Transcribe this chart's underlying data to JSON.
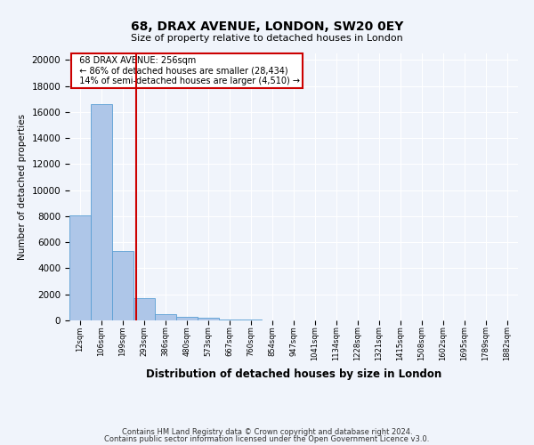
{
  "title1": "68, DRAX AVENUE, LONDON, SW20 0EY",
  "title2": "Size of property relative to detached houses in London",
  "xlabel": "Distribution of detached houses by size in London",
  "ylabel": "Number of detached properties",
  "categories": [
    "12sqm",
    "106sqm",
    "199sqm",
    "293sqm",
    "386sqm",
    "480sqm",
    "573sqm",
    "667sqm",
    "760sqm",
    "854sqm",
    "947sqm",
    "1041sqm",
    "1134sqm",
    "1228sqm",
    "1321sqm",
    "1415sqm",
    "1508sqm",
    "1602sqm",
    "1695sqm",
    "1789sqm",
    "1882sqm"
  ],
  "values": [
    8050,
    16600,
    5300,
    1700,
    500,
    300,
    175,
    100,
    55,
    25,
    14,
    8,
    5,
    3,
    2,
    1,
    1,
    1,
    0,
    0,
    0
  ],
  "bar_color": "#aec6e8",
  "bar_edge_color": "#5a9fd4",
  "annotation_title": "68 DRAX AVENUE: 256sqm",
  "annotation_line1": "← 86% of detached houses are smaller (28,434)",
  "annotation_line2": "14% of semi-detached houses are larger (4,510) →",
  "annotation_box_color": "#ffffff",
  "annotation_box_edge": "#cc0000",
  "red_line_color": "#cc0000",
  "background_color": "#f0f4fb",
  "grid_color": "#ffffff",
  "ylim": [
    0,
    20500
  ],
  "yticks": [
    0,
    2000,
    4000,
    6000,
    8000,
    10000,
    12000,
    14000,
    16000,
    18000,
    20000
  ],
  "footer1": "Contains HM Land Registry data © Crown copyright and database right 2024.",
  "footer2": "Contains public sector information licensed under the Open Government Licence v3.0."
}
